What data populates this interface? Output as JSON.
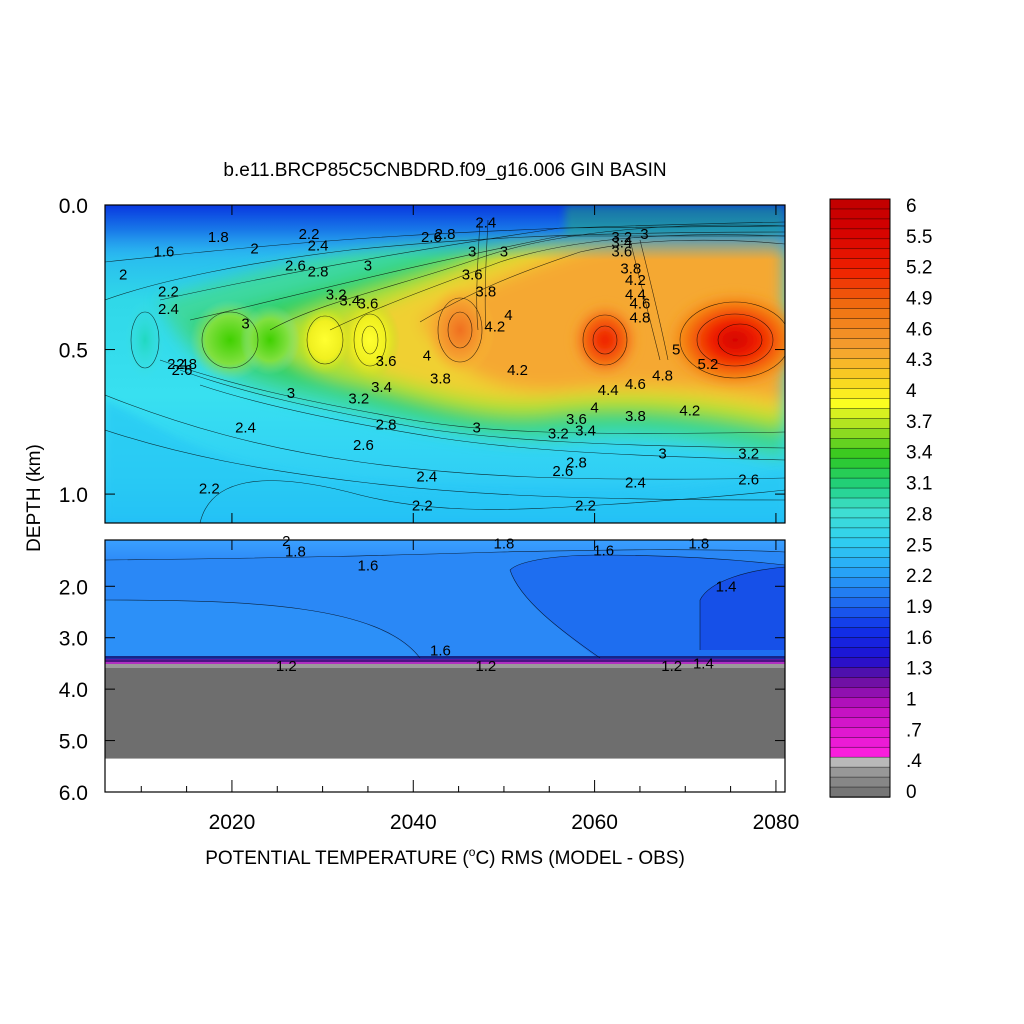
{
  "chart_data": {
    "type": "heatmap",
    "title": "b.e11.BRCP85C5CNBDRD.f09_g16.006 GIN BASIN",
    "xlabel": "POTENTIAL TEMPERATURE (",
    "xlabel_sup": "o",
    "xlabel_tail": "C) RMS (MODEL - OBS)",
    "ylabel": "DEPTH (km)",
    "x_range": [
      2006,
      2081
    ],
    "x_ticks": [
      "2020",
      "2040",
      "2060",
      "2080"
    ],
    "x_tick_values": [
      2020,
      2040,
      2060,
      2080
    ],
    "upper_panel": {
      "y_range": [
        0.0,
        1.1
      ],
      "y_ticks": [
        "0.0",
        "0.5",
        "1.0"
      ],
      "y_tick_values": [
        0.0,
        0.5,
        1.0
      ]
    },
    "lower_panel": {
      "y_range": [
        1.1,
        6.0
      ],
      "y_ticks": [
        "2.0",
        "3.0",
        "4.0",
        "5.0",
        "6.0"
      ],
      "y_tick_values": [
        2.0,
        3.0,
        4.0,
        5.0,
        6.0
      ],
      "ocean_floor_depth": 3.6,
      "missing_below_depth": 5.35
    },
    "colorbar": {
      "labels": [
        "6",
        "5.5",
        "5.2",
        "4.9",
        "4.6",
        "4.3",
        "4",
        "3.7",
        "3.4",
        "3.1",
        "2.8",
        "2.5",
        "2.2",
        "1.9",
        "1.6",
        "1.3",
        "1",
        ".7",
        ".4",
        "0"
      ],
      "range": [
        0,
        6
      ]
    },
    "contour_labels": [
      {
        "text": "1.6",
        "x": 2012.5,
        "y": 0.16
      },
      {
        "text": "1.8",
        "x": 2018.5,
        "y": 0.11
      },
      {
        "text": "2",
        "x": 2022.5,
        "y": 0.15
      },
      {
        "text": "2",
        "x": 2008,
        "y": 0.24
      },
      {
        "text": "2.2",
        "x": 2013,
        "y": 0.3
      },
      {
        "text": "2.4",
        "x": 2013,
        "y": 0.36
      },
      {
        "text": "2.2",
        "x": 2028.5,
        "y": 0.1
      },
      {
        "text": "2.4",
        "x": 2029.5,
        "y": 0.14
      },
      {
        "text": "2.6",
        "x": 2027,
        "y": 0.21
      },
      {
        "text": "2.8",
        "x": 2029.5,
        "y": 0.23
      },
      {
        "text": "3",
        "x": 2021.5,
        "y": 0.41
      },
      {
        "text": "3",
        "x": 2035,
        "y": 0.21
      },
      {
        "text": "3.2",
        "x": 2031.5,
        "y": 0.31
      },
      {
        "text": "3.4",
        "x": 2033,
        "y": 0.33
      },
      {
        "text": "3.6",
        "x": 2035,
        "y": 0.34
      },
      {
        "text": "2.4",
        "x": 2014,
        "y": 0.55
      },
      {
        "text": "2.6",
        "x": 2014.5,
        "y": 0.57
      },
      {
        "text": "2.8",
        "x": 2015,
        "y": 0.55
      },
      {
        "text": "2.6",
        "x": 2042,
        "y": 0.11
      },
      {
        "text": "2.8",
        "x": 2043.5,
        "y": 0.1
      },
      {
        "text": "2.4",
        "x": 2048,
        "y": 0.06
      },
      {
        "text": "3",
        "x": 2046.5,
        "y": 0.16
      },
      {
        "text": "3",
        "x": 2050,
        "y": 0.16
      },
      {
        "text": "3.6",
        "x": 2046.5,
        "y": 0.24
      },
      {
        "text": "3.8",
        "x": 2048,
        "y": 0.3
      },
      {
        "text": "4",
        "x": 2050.5,
        "y": 0.38
      },
      {
        "text": "4.2",
        "x": 2049,
        "y": 0.42
      },
      {
        "text": "3.6",
        "x": 2037,
        "y": 0.54
      },
      {
        "text": "4",
        "x": 2041.5,
        "y": 0.52
      },
      {
        "text": "3.8",
        "x": 2043,
        "y": 0.6
      },
      {
        "text": "4.2",
        "x": 2051.5,
        "y": 0.57
      },
      {
        "text": "3",
        "x": 2026.5,
        "y": 0.65
      },
      {
        "text": "3.2",
        "x": 2034,
        "y": 0.67
      },
      {
        "text": "3.4",
        "x": 2036.5,
        "y": 0.63
      },
      {
        "text": "2.4",
        "x": 2021.5,
        "y": 0.77
      },
      {
        "text": "2.8",
        "x": 2037,
        "y": 0.76
      },
      {
        "text": "2.6",
        "x": 2034.5,
        "y": 0.83
      },
      {
        "text": "3",
        "x": 2047,
        "y": 0.77
      },
      {
        "text": "3.2",
        "x": 2063,
        "y": 0.11
      },
      {
        "text": "3",
        "x": 2065.5,
        "y": 0.1
      },
      {
        "text": "3.4",
        "x": 2063,
        "y": 0.13
      },
      {
        "text": "3.6",
        "x": 2063,
        "y": 0.16
      },
      {
        "text": "3.8",
        "x": 2064,
        "y": 0.22
      },
      {
        "text": "4.2",
        "x": 2064.5,
        "y": 0.26
      },
      {
        "text": "4.4",
        "x": 2064.5,
        "y": 0.31
      },
      {
        "text": "4.6",
        "x": 2065,
        "y": 0.34
      },
      {
        "text": "4.8",
        "x": 2065,
        "y": 0.39
      },
      {
        "text": "5",
        "x": 2069,
        "y": 0.5
      },
      {
        "text": "5.2",
        "x": 2072.5,
        "y": 0.55
      },
      {
        "text": "4.4",
        "x": 2061.5,
        "y": 0.64
      },
      {
        "text": "4.6",
        "x": 2064.5,
        "y": 0.62
      },
      {
        "text": "4.8",
        "x": 2067.5,
        "y": 0.59
      },
      {
        "text": "4",
        "x": 2060,
        "y": 0.7
      },
      {
        "text": "3.8",
        "x": 2064.5,
        "y": 0.73
      },
      {
        "text": "4.2",
        "x": 2070.5,
        "y": 0.71
      },
      {
        "text": "3.6",
        "x": 2058,
        "y": 0.74
      },
      {
        "text": "3.4",
        "x": 2059,
        "y": 0.78
      },
      {
        "text": "3.2",
        "x": 2056,
        "y": 0.79
      },
      {
        "text": "3",
        "x": 2067.5,
        "y": 0.86
      },
      {
        "text": "3.2",
        "x": 2077,
        "y": 0.86
      },
      {
        "text": "2.8",
        "x": 2058,
        "y": 0.89
      },
      {
        "text": "2.6",
        "x": 2056.5,
        "y": 0.92
      },
      {
        "text": "2.4",
        "x": 2064.5,
        "y": 0.96
      },
      {
        "text": "2.6",
        "x": 2077,
        "y": 0.95
      },
      {
        "text": "2.2",
        "x": 2059,
        "y": 1.04
      },
      {
        "text": "2.2",
        "x": 2017.5,
        "y": 0.98
      },
      {
        "text": "2.4",
        "x": 2041.5,
        "y": 0.94
      },
      {
        "text": "2.2",
        "x": 2041,
        "y": 1.04
      },
      {
        "text": "2",
        "x": 2026,
        "y": 1.12
      },
      {
        "text": "1.8",
        "x": 2027,
        "y": 1.32
      },
      {
        "text": "1.8",
        "x": 2050,
        "y": 1.17
      },
      {
        "text": "1.6",
        "x": 2061,
        "y": 1.3
      },
      {
        "text": "1.8",
        "x": 2071.5,
        "y": 1.17
      },
      {
        "text": "1.6",
        "x": 2035,
        "y": 1.6
      },
      {
        "text": "1.4",
        "x": 2074.5,
        "y": 2.0
      },
      {
        "text": "1.6",
        "x": 2043,
        "y": 3.25
      },
      {
        "text": "1.2",
        "x": 2026,
        "y": 3.55
      },
      {
        "text": "1.2",
        "x": 2048,
        "y": 3.55
      },
      {
        "text": "1.2",
        "x": 2068.5,
        "y": 3.55
      },
      {
        "text": "1.4",
        "x": 2072,
        "y": 3.5
      }
    ]
  }
}
